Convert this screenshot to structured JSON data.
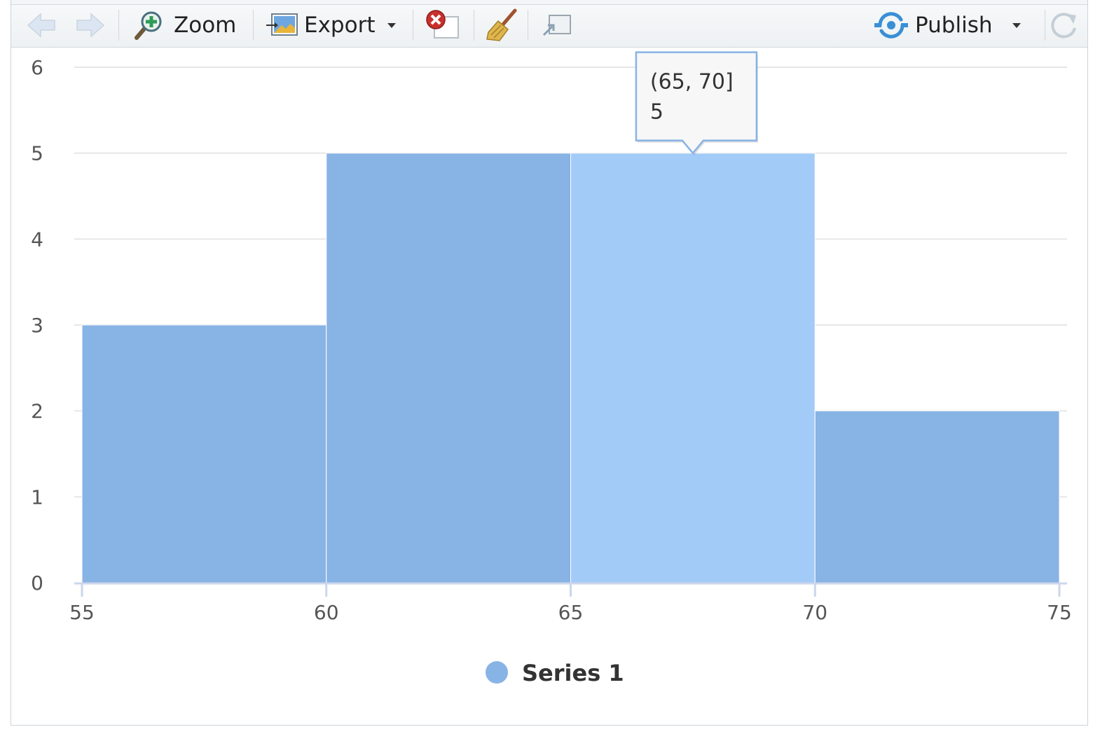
{
  "toolbar": {
    "back_icon": "arrow-left-icon",
    "forward_icon": "arrow-right-icon",
    "zoom_label": "Zoom",
    "export_label": "Export",
    "publish_label": "Publish",
    "publish_color": "#3a8fd6"
  },
  "chart_data": {
    "type": "bar",
    "bins": [
      [
        55,
        60
      ],
      [
        60,
        65
      ],
      [
        65,
        70
      ],
      [
        70,
        75
      ]
    ],
    "values": [
      3,
      5,
      5,
      2
    ],
    "x_ticks": [
      "55",
      "60",
      "65",
      "70",
      "75"
    ],
    "y_ticks": [
      "0",
      "1",
      "2",
      "3",
      "4",
      "5",
      "6"
    ],
    "xlim": [
      55,
      75
    ],
    "ylim": [
      0,
      6
    ],
    "grid": true,
    "legend": {
      "position": "bottom",
      "entries": [
        "Series 1"
      ]
    },
    "series": [
      {
        "name": "Series 1",
        "color": "#88b3e5",
        "values": [
          3,
          5,
          5,
          2
        ]
      }
    ],
    "highlight_color": "#a3cbf7",
    "tooltip": {
      "bin_index": 2,
      "label": "(65, 70]",
      "value": "5"
    }
  }
}
